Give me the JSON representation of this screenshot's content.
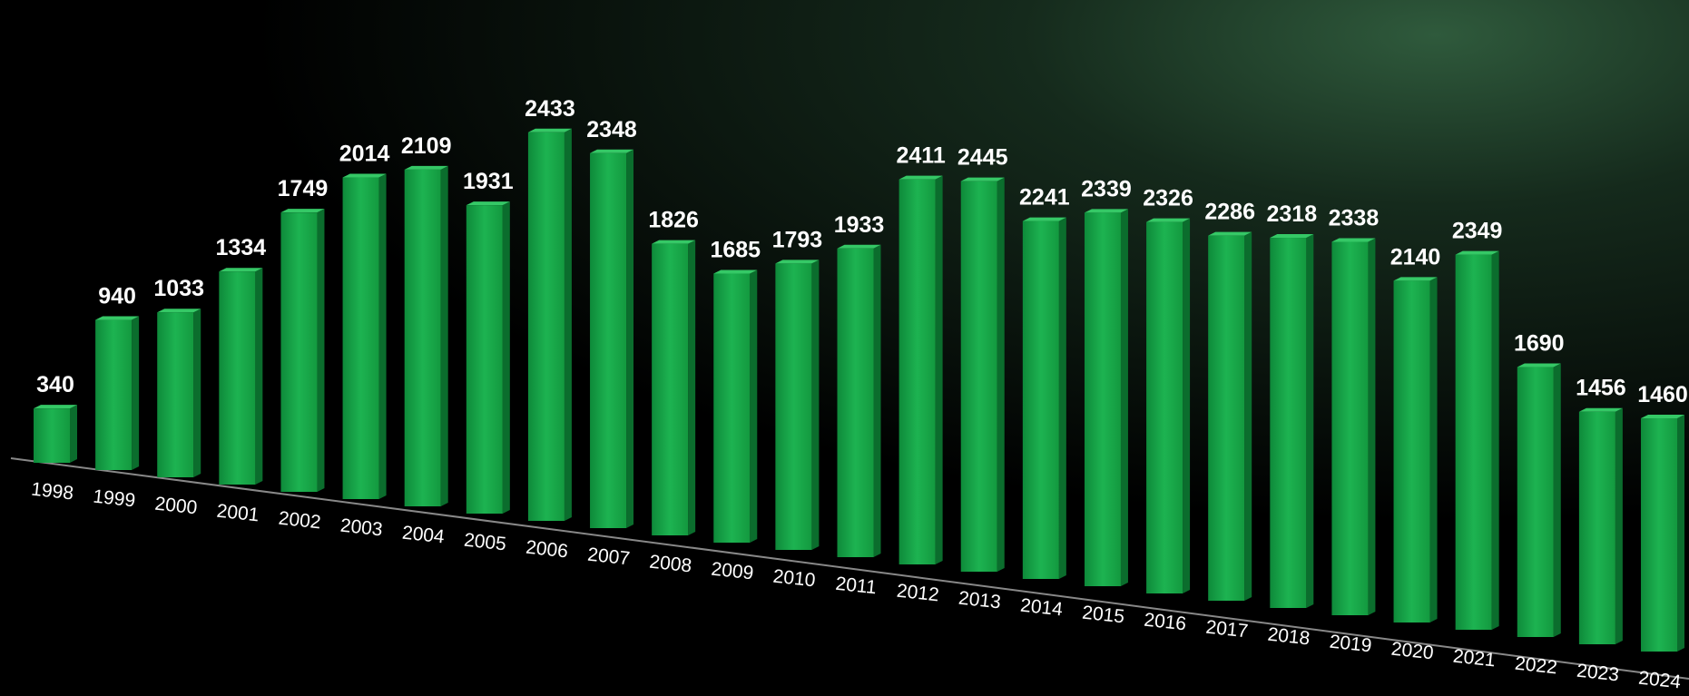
{
  "chart_data": {
    "type": "bar",
    "categories": [
      "1998",
      "1999",
      "2000",
      "2001",
      "2002",
      "2003",
      "2004",
      "2005",
      "2006",
      "2007",
      "2008",
      "2009",
      "2010",
      "2011",
      "2012",
      "2013",
      "2014",
      "2015",
      "2016",
      "2017",
      "2018",
      "2019",
      "2020",
      "2021",
      "2022",
      "2023",
      "2024"
    ],
    "values": [
      340,
      940,
      1033,
      1334,
      1749,
      2014,
      2109,
      1931,
      2433,
      2348,
      1826,
      1685,
      1793,
      1933,
      2411,
      2445,
      2241,
      2339,
      2326,
      2286,
      2318,
      2338,
      2140,
      2349,
      1690,
      1456,
      1460
    ],
    "color": "#1aa34a"
  }
}
